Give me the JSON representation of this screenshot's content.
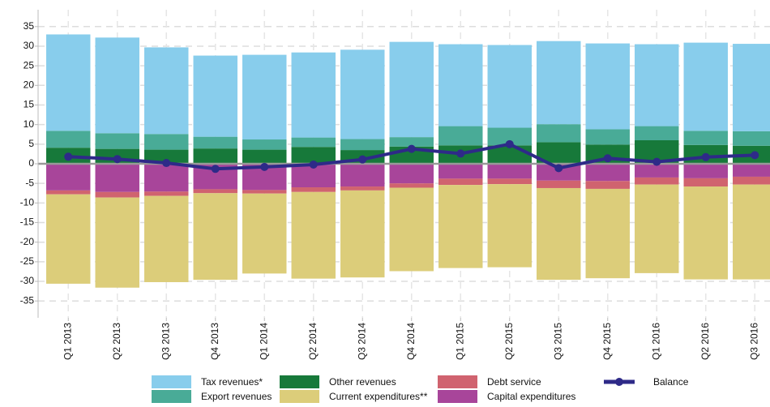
{
  "chart_data": {
    "type": "stacked-bar-line",
    "categories": [
      "Q1 2013",
      "Q2 2013",
      "Q3 2013",
      "Q4 2013",
      "Q1 2014",
      "Q2 2014",
      "Q3 2014",
      "Q4 2014",
      "Q1 2015",
      "Q2 2015",
      "Q3 2015",
      "Q4 2015",
      "Q1 2016",
      "Q2 2016",
      "Q3 2016"
    ],
    "series": [
      {
        "name": "Tax revenues*",
        "type": "bar",
        "color": "#88cdec",
        "values": [
          24.6,
          24.4,
          22.1,
          20.7,
          21.6,
          21.7,
          22.8,
          24.3,
          20.9,
          21.1,
          21.2,
          21.9,
          20.9,
          22.5,
          22.3
        ]
      },
      {
        "name": "Export revenues",
        "type": "bar",
        "color": "#49ab97",
        "values": [
          4.3,
          4.0,
          4.0,
          3.0,
          2.6,
          2.4,
          2.8,
          2.4,
          4.9,
          4.5,
          4.6,
          3.9,
          3.6,
          3.6,
          3.7
        ]
      },
      {
        "name": "Other revenues",
        "type": "bar",
        "color": "#17793a",
        "values": [
          4.1,
          3.8,
          3.6,
          3.9,
          3.6,
          4.3,
          3.5,
          4.4,
          4.7,
          4.7,
          5.5,
          4.9,
          6.0,
          4.8,
          4.6
        ]
      },
      {
        "name": "Current expenditures**",
        "type": "bar",
        "color": "#dccd7a",
        "values": [
          -22.8,
          -23.0,
          -22.0,
          -22.1,
          -20.4,
          -22.1,
          -22.2,
          -21.3,
          -21.2,
          -21.2,
          -23.4,
          -22.8,
          -22.6,
          -23.7,
          -24.2
        ]
      },
      {
        "name": "Debt service",
        "type": "bar",
        "color": "#d0636f",
        "values": [
          -1.0,
          -1.4,
          -1.1,
          -1.0,
          -0.9,
          -1.2,
          -1.0,
          -1.1,
          -1.6,
          -1.4,
          -1.9,
          -2.0,
          -1.8,
          -2.1,
          -2.0
        ]
      },
      {
        "name": "Capital expenditures",
        "type": "bar",
        "color": "#a8459a",
        "values": [
          -6.8,
          -7.2,
          -7.1,
          -6.5,
          -6.7,
          -6.0,
          -5.8,
          -5.0,
          -3.8,
          -3.8,
          -4.3,
          -4.4,
          -3.5,
          -3.7,
          -3.3
        ]
      },
      {
        "name": "Balance",
        "type": "line",
        "color": "#2e2a88",
        "values": [
          1.8,
          1.2,
          0.2,
          -1.3,
          -0.8,
          -0.2,
          1.1,
          3.8,
          2.6,
          5.0,
          -1.1,
          1.4,
          0.5,
          1.7,
          2.2
        ]
      }
    ],
    "stack_order": [
      2,
      1,
      0,
      5,
      4,
      3
    ],
    "ylim": [
      -39.3,
      39.3
    ],
    "yticks": [
      -35,
      -30,
      -25,
      -20,
      -15,
      -10,
      -5,
      0,
      5,
      10,
      15,
      20,
      25,
      30,
      35
    ],
    "grid": true
  }
}
